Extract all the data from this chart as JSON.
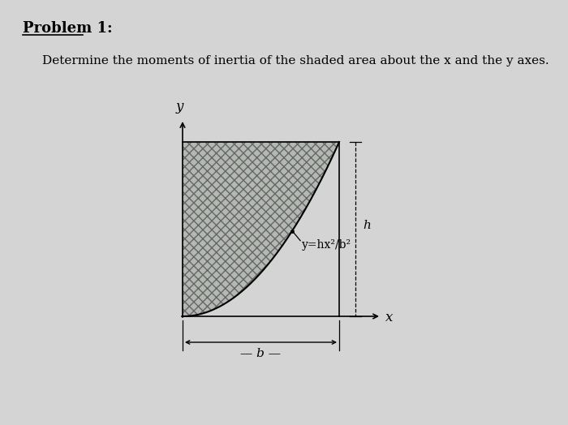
{
  "background_color": "#d4d4d4",
  "curve_label": "y=hx²/b²",
  "b_label": "b",
  "h_label": "h",
  "x_label": "x",
  "y_label": "y",
  "fig_width": 7.0,
  "fig_height": 5.24,
  "dpi": 100,
  "ox": 225,
  "oy": 390,
  "bx": 418,
  "hy": 175
}
